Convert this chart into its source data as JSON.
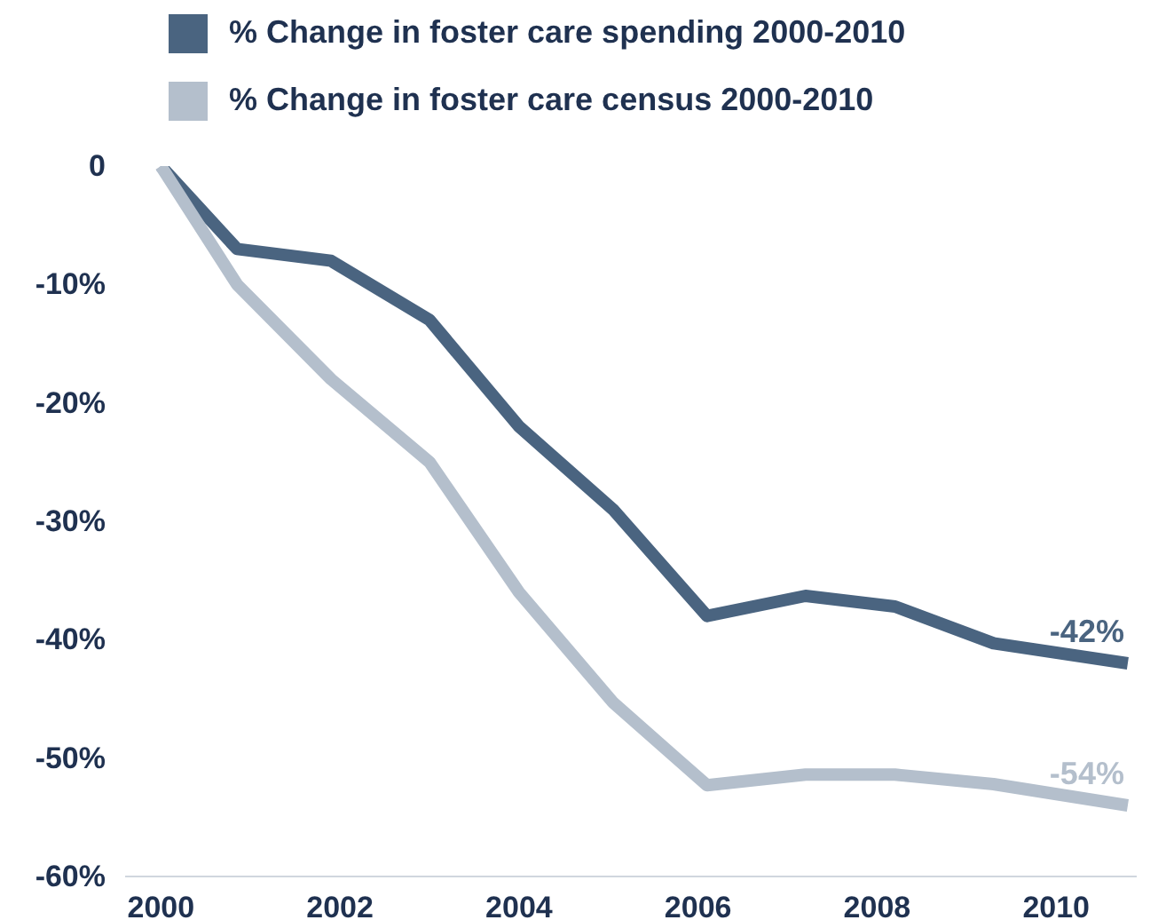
{
  "chart_data": {
    "type": "line",
    "series": [
      {
        "name": "% Change in foster care spending 2000-2010",
        "color": "#4a6480",
        "x": [
          2000,
          2000.85,
          2001.9,
          2003.0,
          2004.0,
          2005.05,
          2006.1,
          2007.2,
          2008.2,
          2009.3,
          2010.8
        ],
        "values": [
          0,
          -7,
          -8,
          -13,
          -22,
          -29,
          -38,
          -36.3,
          -37.2,
          -40.3,
          -42
        ]
      },
      {
        "name": "% Change in foster care census 2000-2010",
        "color": "#b4bfcc",
        "x": [
          2000,
          2000.85,
          2001.9,
          2003.0,
          2004.0,
          2005.05,
          2006.1,
          2007.2,
          2008.2,
          2009.3,
          2010.8
        ],
        "values": [
          0,
          -10,
          -18,
          -25,
          -36,
          -45.3,
          -52.3,
          -51.4,
          -51.4,
          -52.2,
          -54
        ]
      }
    ],
    "xlim": [
      1999.6,
      2010.9
    ],
    "xticks": [
      2000,
      2002,
      2004,
      2006,
      2008,
      2010
    ],
    "ylim": [
      -60,
      0
    ],
    "yticks": [
      {
        "value": 0,
        "label": "0"
      },
      {
        "value": -10,
        "label": "-10%"
      },
      {
        "value": -20,
        "label": "-20%"
      },
      {
        "value": -30,
        "label": "-30%"
      },
      {
        "value": -40,
        "label": "-40%"
      },
      {
        "value": -50,
        "label": "-50%"
      },
      {
        "value": -60,
        "label": "-60%"
      }
    ],
    "annotations": [
      {
        "text": "-42%",
        "x": 2010.8,
        "y": -42
      },
      {
        "text": "-54%",
        "x": 2010.8,
        "y": -54
      }
    ],
    "grid": false,
    "legend": "top left",
    "marker": "none",
    "line_style": "solid"
  }
}
